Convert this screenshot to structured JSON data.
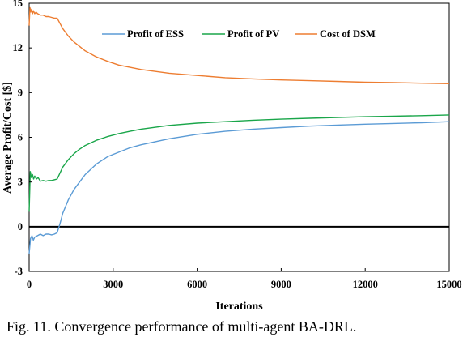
{
  "chart_data": {
    "type": "line",
    "xlabel": "Iterations",
    "ylabel": "Average Profit/Cost [$]",
    "xlim": [
      0,
      15000
    ],
    "ylim": [
      -3,
      15
    ],
    "xticks": [
      0,
      3000,
      6000,
      9000,
      12000,
      15000
    ],
    "yticks": [
      -3,
      0,
      3,
      6,
      9,
      12,
      15
    ],
    "xtick_labels": [
      "0",
      "3000",
      "6000",
      "9000",
      "12000",
      "15000"
    ],
    "ytick_labels": [
      "-3",
      "0",
      "3",
      "6",
      "9",
      "12",
      "15"
    ],
    "zero_line": true,
    "grid": false,
    "legend_position": "top-right",
    "series": [
      {
        "name": "Profit of ESS",
        "color": "#5b9bd5",
        "x": [
          0,
          50,
          100,
          150,
          200,
          300,
          400,
          500,
          600,
          700,
          800,
          900,
          950,
          1000,
          1100,
          1200,
          1400,
          1600,
          1800,
          2000,
          2400,
          2800,
          3200,
          3600,
          4000,
          5000,
          6000,
          7000,
          8000,
          9000,
          10000,
          11000,
          12000,
          13000,
          14000,
          15000
        ],
        "y": [
          -1.8,
          -0.8,
          -0.6,
          -0.9,
          -0.7,
          -0.6,
          -0.5,
          -0.6,
          -0.5,
          -0.5,
          -0.55,
          -0.5,
          -0.45,
          -0.4,
          0.2,
          0.9,
          1.8,
          2.5,
          3.0,
          3.5,
          4.2,
          4.7,
          5.0,
          5.3,
          5.5,
          5.9,
          6.2,
          6.4,
          6.55,
          6.65,
          6.75,
          6.82,
          6.88,
          6.93,
          6.98,
          7.05
        ]
      },
      {
        "name": "Profit of PV",
        "color": "#1aa64a",
        "x": [
          0,
          40,
          80,
          120,
          160,
          200,
          260,
          320,
          400,
          500,
          600,
          700,
          800,
          900,
          1000,
          1100,
          1200,
          1400,
          1600,
          1800,
          2000,
          2400,
          2800,
          3200,
          3600,
          4000,
          5000,
          6000,
          7000,
          8000,
          9000,
          10000,
          11000,
          12000,
          13000,
          14000,
          15000
        ],
        "y": [
          1.0,
          3.7,
          3.3,
          3.5,
          3.2,
          3.4,
          3.2,
          3.3,
          3.05,
          3.1,
          3.05,
          3.1,
          3.1,
          3.15,
          3.2,
          3.6,
          4.0,
          4.5,
          4.9,
          5.2,
          5.45,
          5.8,
          6.05,
          6.25,
          6.4,
          6.55,
          6.8,
          6.95,
          7.05,
          7.15,
          7.22,
          7.28,
          7.33,
          7.38,
          7.42,
          7.45,
          7.5
        ]
      },
      {
        "name": "Cost of DSM",
        "color": "#ed7d31",
        "x": [
          0,
          30,
          60,
          90,
          120,
          150,
          200,
          250,
          300,
          400,
          500,
          600,
          700,
          800,
          900,
          1000,
          1200,
          1400,
          1600,
          1800,
          2000,
          2400,
          2800,
          3200,
          3600,
          4000,
          5000,
          6000,
          7000,
          8000,
          9000,
          10000,
          11000,
          12000,
          13000,
          14000,
          15000
        ],
        "y": [
          13.5,
          14.7,
          14.4,
          14.6,
          14.3,
          14.5,
          14.3,
          14.4,
          14.3,
          14.2,
          14.2,
          14.1,
          14.1,
          14.05,
          14.0,
          14.0,
          13.3,
          12.8,
          12.4,
          12.1,
          11.8,
          11.4,
          11.1,
          10.85,
          10.7,
          10.55,
          10.3,
          10.15,
          10.0,
          9.92,
          9.85,
          9.8,
          9.75,
          9.7,
          9.67,
          9.63,
          9.6
        ]
      }
    ]
  },
  "caption": "Fig. 11.  Convergence performance of multi-agent BA-DRL."
}
